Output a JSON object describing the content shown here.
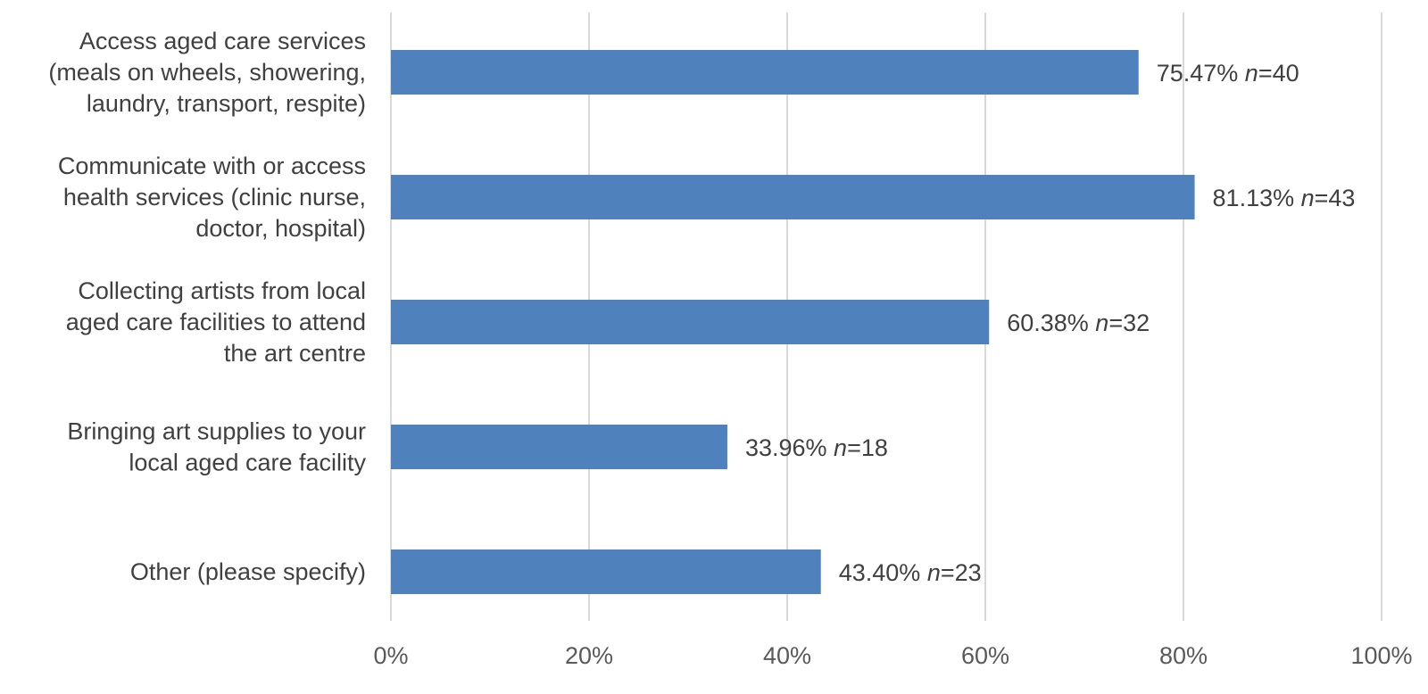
{
  "chart_data": {
    "type": "bar",
    "orientation": "horizontal",
    "title": "",
    "xlabel": "",
    "ylabel": "",
    "xlim": [
      0,
      100
    ],
    "grid": true,
    "legend": "none",
    "bar_color": "#4f81bd",
    "tick_labels": [
      "0%",
      "20%",
      "40%",
      "60%",
      "80%",
      "100%"
    ],
    "categories": [
      [
        "Access aged care services",
        "(meals on wheels, showering,",
        "laundry, transport, respite)"
      ],
      [
        "Communicate with or access",
        "health services (clinic nurse,",
        "doctor, hospital)"
      ],
      [
        "Collecting artists from local",
        "aged care facilities to attend",
        "the art centre"
      ],
      [
        "Bringing art supplies to your",
        "local aged care facility"
      ],
      [
        "Other (please specify)"
      ]
    ],
    "values": [
      75.47,
      81.13,
      60.38,
      33.96,
      43.4
    ],
    "value_labels": [
      "75.47%",
      "81.13%",
      "60.38%",
      "33.96%",
      "43.40%"
    ],
    "n_prefix": "n",
    "n_values": [
      "=40",
      "=43",
      "=32",
      "=18",
      "=23"
    ]
  }
}
